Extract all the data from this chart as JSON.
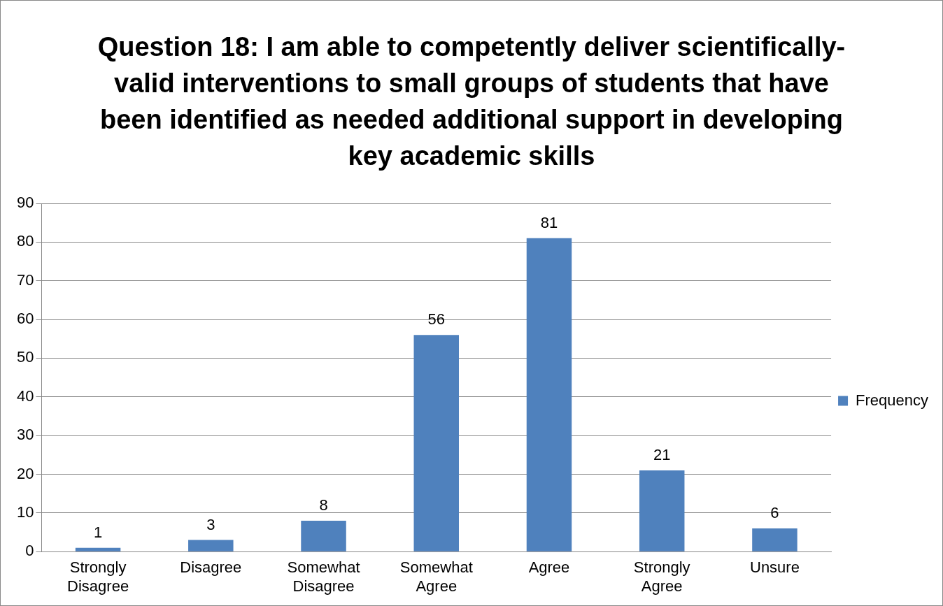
{
  "chart_data": {
    "type": "bar",
    "title": "Question 18: I am able to competently deliver scientifically-valid interventions to small groups of students that have been identified as needed additional support in developing key academic skills",
    "categories": [
      "Strongly Disagree",
      "Disagree",
      "Somewhat Disagree",
      "Somewhat Agree",
      "Agree",
      "Strongly Agree",
      "Unsure"
    ],
    "series": [
      {
        "name": "Frequency",
        "color": "#4f81bd",
        "values": [
          1,
          3,
          8,
          56,
          81,
          21,
          6
        ]
      }
    ],
    "ylim": [
      0,
      90
    ],
    "yticks": [
      0,
      10,
      20,
      30,
      40,
      50,
      60,
      70,
      80,
      90
    ],
    "grid": "y",
    "legend": "right",
    "data_labels": true
  }
}
